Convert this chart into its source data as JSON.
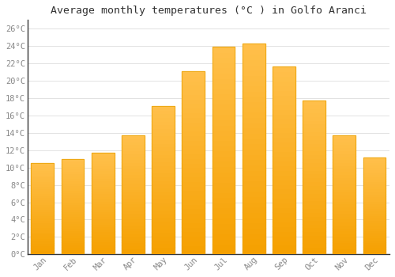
{
  "months": [
    "Jan",
    "Feb",
    "Mar",
    "Apr",
    "May",
    "Jun",
    "Jul",
    "Aug",
    "Sep",
    "Oct",
    "Nov",
    "Dec"
  ],
  "temperatures": [
    10.5,
    11.0,
    11.7,
    13.7,
    17.1,
    21.1,
    23.9,
    24.3,
    21.6,
    17.7,
    13.7,
    11.2
  ],
  "bar_color_top": "#FFC04C",
  "bar_color_bottom": "#F5A000",
  "bar_edge_color": "#E8A000",
  "background_color": "#FFFFFF",
  "plot_bg_color": "#FFFFFF",
  "grid_color": "#DDDDDD",
  "title": "Average monthly temperatures (°C ) in Golfo Aranci",
  "title_fontsize": 9.5,
  "tick_label_fontsize": 7.5,
  "tick_color": "#888888",
  "spine_color": "#333333",
  "ylim": [
    0,
    27
  ],
  "yticks": [
    0,
    2,
    4,
    6,
    8,
    10,
    12,
    14,
    16,
    18,
    20,
    22,
    24,
    26
  ],
  "ytick_labels": [
    "0°C",
    "2°C",
    "4°C",
    "6°C",
    "8°C",
    "10°C",
    "12°C",
    "14°C",
    "16°C",
    "18°C",
    "20°C",
    "22°C",
    "24°C",
    "26°C"
  ]
}
